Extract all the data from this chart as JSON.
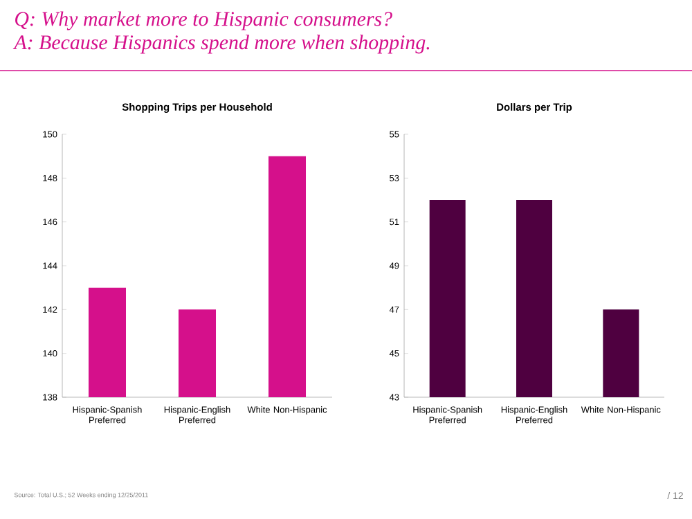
{
  "chart_data": [
    {
      "type": "bar",
      "title": "Shopping Trips per Household",
      "categories": [
        "Hispanic-Spanish Preferred",
        "Hispanic-English Preferred",
        "White Non-Hispanic"
      ],
      "values": [
        143,
        142,
        149
      ],
      "color": "#d5108b",
      "ylim": [
        138,
        150
      ],
      "yticks": [
        138,
        140,
        142,
        144,
        146,
        148,
        150
      ],
      "annotations": [
        "Q: Why market more to Hispanic consumers?",
        "A: Because Hispanics spend more when shopping.",
        "Source: Total U.S.; 52 Weeks ending 12/25/2011"
      ]
    },
    {
      "type": "bar",
      "title": "Dollars per Trip",
      "categories": [
        "Hispanic-Spanish Preferred",
        "Hispanic-English Preferred",
        "White Non-Hispanic"
      ],
      "values": [
        52,
        52,
        47
      ],
      "color": "#4f0040",
      "ylim": [
        43,
        55
      ],
      "yticks": [
        43,
        45,
        47,
        49,
        51,
        53,
        55
      ],
      "annotations": [
        "/ 12"
      ]
    }
  ]
}
